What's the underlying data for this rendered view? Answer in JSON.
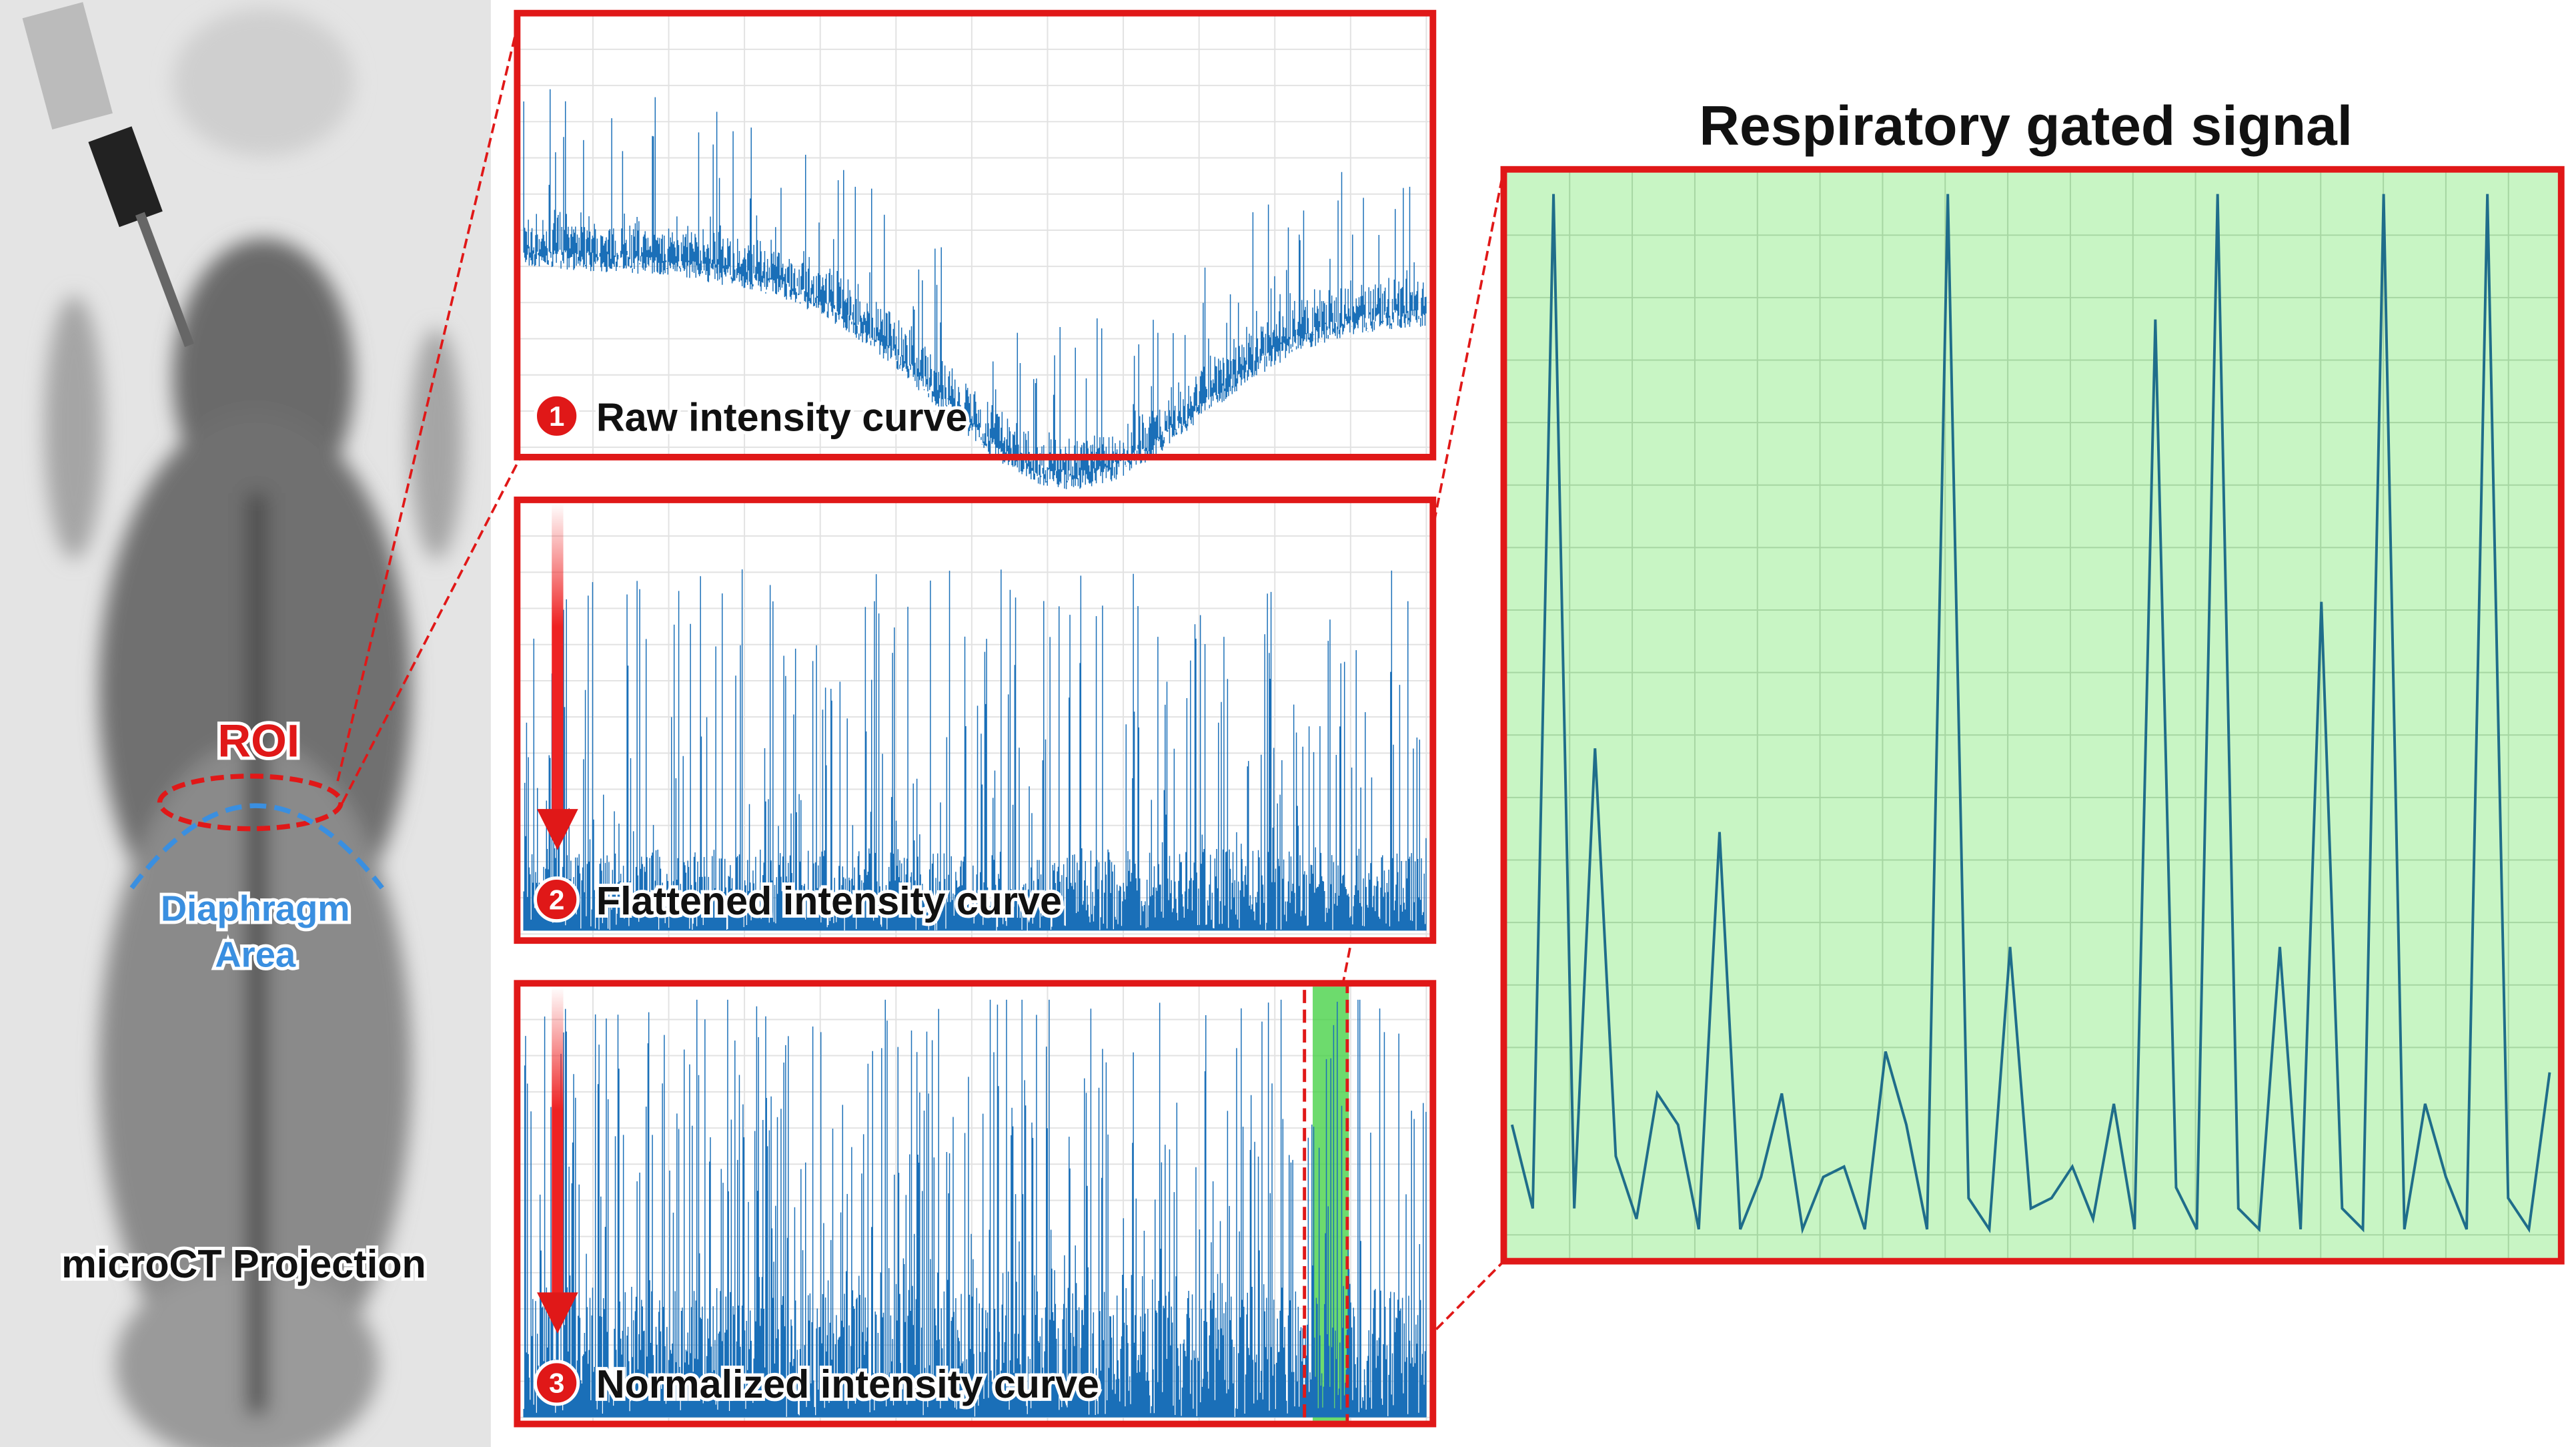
{
  "projection": {
    "roi": "ROI",
    "diaphragm": [
      "Diaphragm",
      "Area"
    ],
    "caption": "microCT  Projection"
  },
  "panels": [
    {
      "number": "1",
      "label": "Raw intensity curve"
    },
    {
      "number": "2",
      "label": "Flattened intensity curve"
    },
    {
      "number": "3",
      "label": "Normalized intensity curve"
    }
  ],
  "gated_signal": {
    "title": "Respiratory gated signal",
    "values": [
      0.11,
      0.03,
      1.0,
      0.03,
      0.47,
      0.08,
      0.02,
      0.14,
      0.11,
      0.01,
      0.39,
      0.01,
      0.06,
      0.14,
      0.01,
      0.06,
      0.07,
      0.01,
      0.18,
      0.11,
      0.01,
      1.0,
      0.04,
      0.01,
      0.28,
      0.03,
      0.04,
      0.07,
      0.02,
      0.13,
      0.01,
      0.88,
      0.05,
      0.01,
      1.0,
      0.03,
      0.01,
      0.28,
      0.01,
      0.61,
      0.03,
      0.01,
      1.0,
      0.01,
      0.13,
      0.06,
      0.01,
      1.0,
      0.04,
      0.01,
      0.16
    ]
  }
}
